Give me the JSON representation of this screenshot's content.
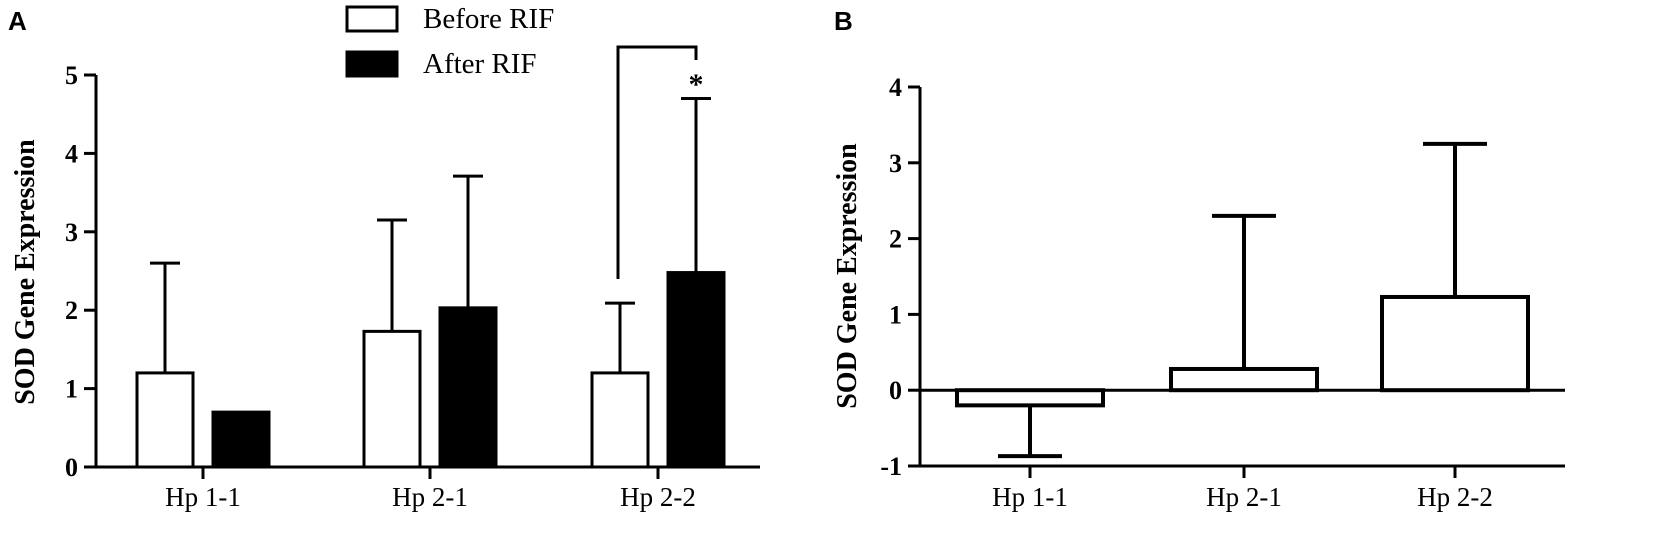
{
  "panels": {
    "a": {
      "letter": "A"
    },
    "b": {
      "letter": "B"
    }
  },
  "chart_data": [
    {
      "panel": "A",
      "type": "bar",
      "ylabel": "SOD Gene Expression",
      "xlabel": "",
      "ylim": [
        0,
        5
      ],
      "yticks": [
        0,
        1,
        2,
        3,
        4,
        5
      ],
      "categories": [
        "Hp 1-1",
        "Hp 2-1",
        "Hp 2-2"
      ],
      "legend_position": "top-center",
      "series": [
        {
          "name": "Before RIF",
          "values": [
            1.2,
            1.73,
            1.2
          ],
          "error": [
            1.4,
            1.42,
            0.89
          ],
          "fill": "#ffffff"
        },
        {
          "name": "After RIF",
          "values": [
            0.7,
            2.03,
            2.48
          ],
          "error": [
            0,
            1.68,
            2.22
          ],
          "fill": "#000000"
        }
      ],
      "significance": {
        "category": "Hp 2-2",
        "label": "*"
      }
    },
    {
      "panel": "B",
      "type": "bar",
      "ylabel": "SOD Gene Expression",
      "xlabel": "",
      "ylim": [
        -1,
        4
      ],
      "yticks": [
        -1,
        0,
        1,
        2,
        3,
        4
      ],
      "categories": [
        "Hp 1-1",
        "Hp 2-1",
        "Hp 2-2"
      ],
      "series": [
        {
          "values": [
            -0.2,
            0.28,
            1.23
          ],
          "error": [
            0.67,
            2.02,
            2.02
          ],
          "fill": "#ffffff"
        }
      ]
    }
  ]
}
